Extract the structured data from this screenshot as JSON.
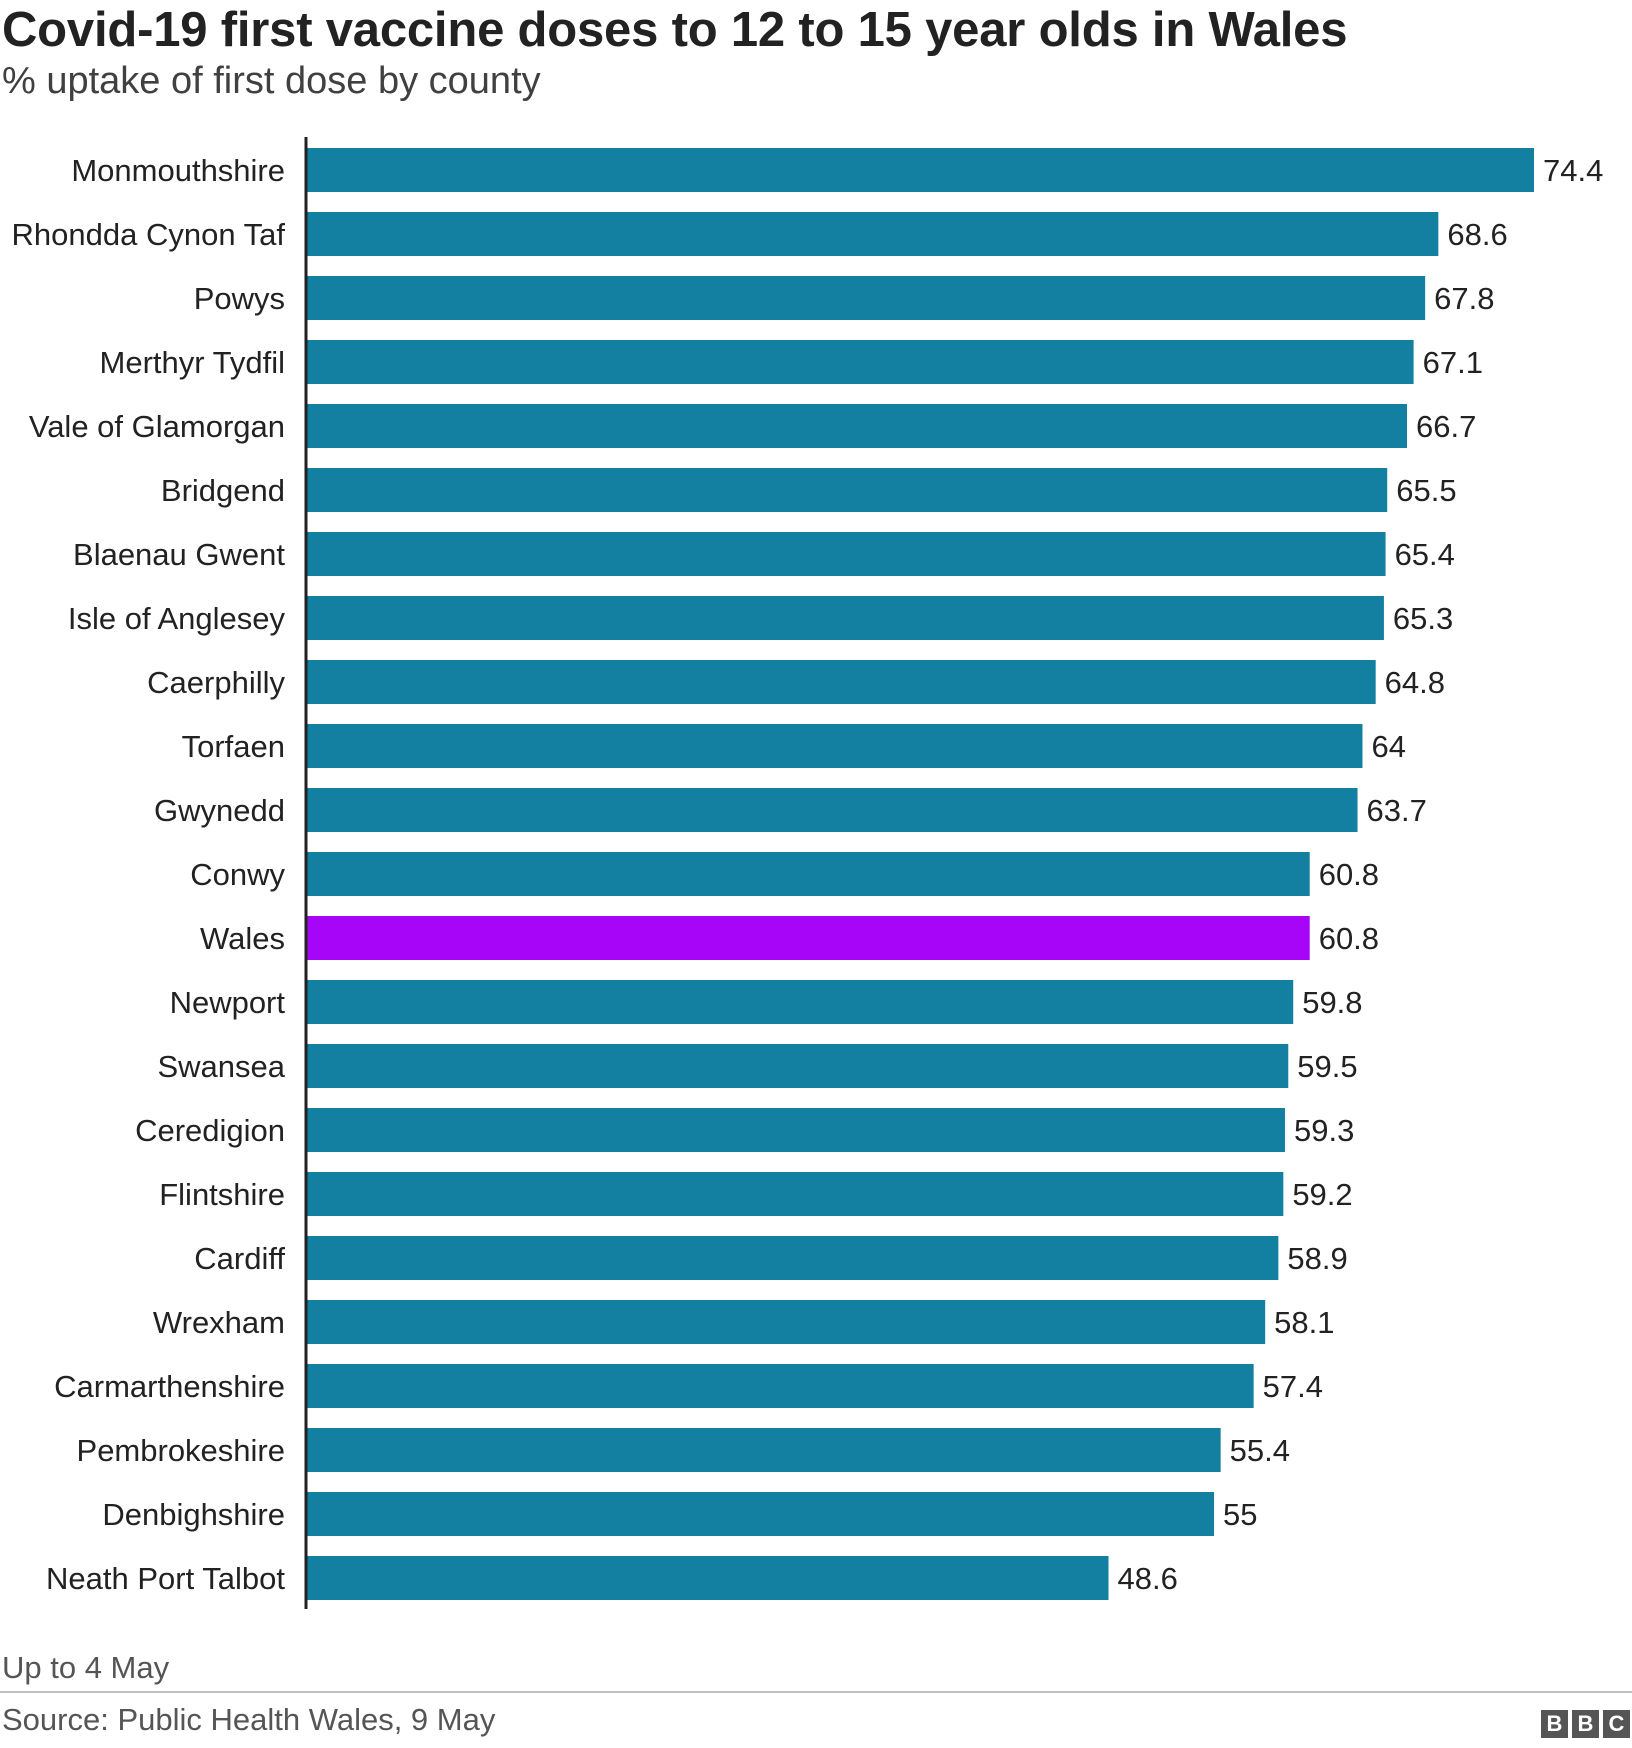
{
  "header": {
    "title": "Covid-19 first vaccine doses to 12 to 15 year olds in Wales",
    "subtitle": "% uptake of first dose by county"
  },
  "footer": {
    "note": "Up to 4 May",
    "source": "Source: Public Health Wales, 9 May",
    "logo_text": "BBC"
  },
  "colors": {
    "bar": "#1380A1",
    "highlight": "#A605F8"
  },
  "chart_data": {
    "type": "bar",
    "orientation": "horizontal",
    "title": "Covid-19 first vaccine doses to 12 to 15 year olds in Wales",
    "subtitle": "% uptake of first dose by county",
    "categories": [
      "Monmouthshire",
      "Rhondda Cynon Taf",
      "Powys",
      "Merthyr Tydfil",
      "Vale of Glamorgan",
      "Bridgend",
      "Blaenau Gwent",
      "Isle of Anglesey",
      "Caerphilly",
      "Torfaen",
      "Gwynedd",
      "Conwy",
      "Wales",
      "Newport",
      "Swansea",
      "Ceredigion",
      "Flintshire",
      "Cardiff",
      "Wrexham",
      "Carmarthenshire",
      "Pembrokeshire",
      "Denbighshire",
      "Neath Port Talbot"
    ],
    "values": [
      74.4,
      68.6,
      67.8,
      67.1,
      66.7,
      65.5,
      65.4,
      65.3,
      64.8,
      64,
      63.7,
      60.8,
      60.8,
      59.8,
      59.5,
      59.3,
      59.2,
      58.9,
      58.1,
      57.4,
      55.4,
      55,
      48.6
    ],
    "highlight": "Wales",
    "xlim": [
      0,
      74.4
    ],
    "grid": false,
    "legend": "none"
  }
}
